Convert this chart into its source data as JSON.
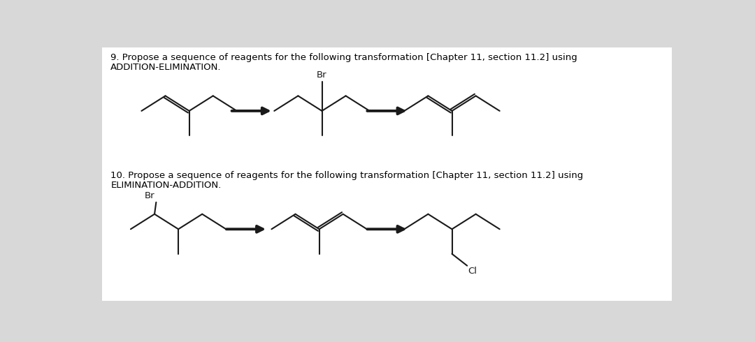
{
  "bg_color": "#d8d8d8",
  "panel_bg": "#ffffff",
  "text_color": "#000000",
  "line_color": "#1a1a1a",
  "q9_text_line1": "9. Propose a sequence of reagents for the following transformation [Chapter 11, section 11.2] using",
  "q9_text_line2": "ADDITION-ELIMINATION.",
  "q10_text_line1": "10. Propose a sequence of reagents for the following transformation [Chapter 11, section 11.2] using",
  "q10_text_line2": "ELIMINATION-ADDITION.",
  "font_size": 9.5,
  "lw": 1.5,
  "arrow_lw": 2.8
}
